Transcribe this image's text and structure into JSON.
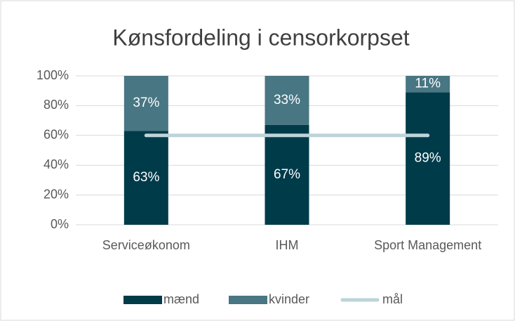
{
  "chart_data": {
    "type": "stacked_bar",
    "title": "Kønsfordeling i censorkorpset",
    "categories": [
      "Serviceøkonom",
      "IHM",
      "Sport Management"
    ],
    "series": [
      {
        "name": "mænd",
        "color": "#003b4a",
        "values": [
          63,
          67,
          89
        ],
        "value_labels": [
          "63%",
          "67%",
          "89%"
        ]
      },
      {
        "name": "kvinder",
        "color": "#487682",
        "values": [
          37,
          33,
          11
        ],
        "value_labels": [
          "37%",
          "33%",
          "11%"
        ]
      },
      {
        "name": "mål",
        "type": "line",
        "color": "#bcd4da",
        "values": [
          60,
          60,
          60
        ]
      }
    ],
    "ylim": [
      0,
      100
    ],
    "yticks": [
      {
        "value": 0,
        "label": "0%"
      },
      {
        "value": 20,
        "label": "20%"
      },
      {
        "value": 40,
        "label": "40%"
      },
      {
        "value": 60,
        "label": "60%"
      },
      {
        "value": 80,
        "label": "80%"
      },
      {
        "value": 100,
        "label": "100%"
      }
    ],
    "grid": true,
    "legend": "bottom"
  }
}
